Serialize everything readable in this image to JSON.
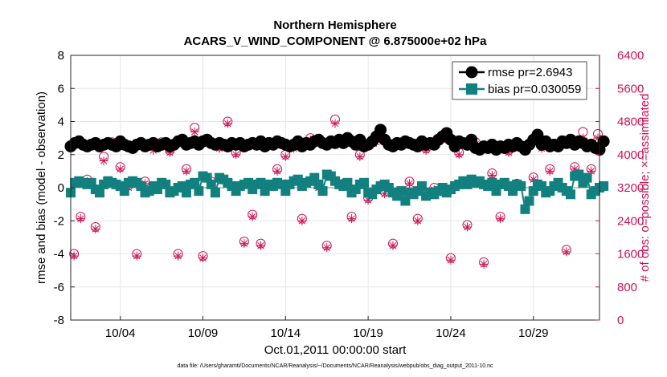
{
  "chart_data": {
    "type": "line",
    "title_line1": "Northern Hemisphere",
    "title_line2": "ACARS_V_WIND_COMPONENT @ 6.875000e+02 hPa",
    "ylabel_left": "rmse and bias (model - observation)",
    "ylabel_right": "# of obs: o=possible; ×=assimilated",
    "xlabel": "Oct.01,2011 00:00:00 start",
    "footnote": "data file: /Users/gharamti/Documents/NCAR/Reanalysis/~/Documents/NCAR/Reanalysis/webpub/obs_diag_output_2011-10.nc",
    "ylim_left": [
      -8,
      8
    ],
    "yticks_left": [
      -8,
      -6,
      -4,
      -2,
      0,
      2,
      4,
      6,
      8
    ],
    "ylim_right": [
      0,
      6400
    ],
    "yticks_right": [
      0,
      800,
      1600,
      2400,
      3200,
      4000,
      4800,
      5600,
      6400
    ],
    "xlim": [
      1.0,
      33.0
    ],
    "xticks": [
      4,
      9,
      14,
      19,
      24,
      29
    ],
    "xtick_labels": [
      "10/04",
      "10/09",
      "10/14",
      "10/19",
      "10/24",
      "10/29"
    ],
    "legend": {
      "rmse_label": "rmse pr=2.6943",
      "bias_label": "bias pr=0.030059",
      "placement": "top-right"
    },
    "colors": {
      "rmse": "#000000",
      "bias": "#138080",
      "obs": "#cc1155",
      "grid": "#e6e6e6"
    },
    "series": [
      {
        "name": "rmse",
        "axis": "left",
        "x_start": 1.0,
        "x_step": 0.25,
        "values": [
          2.5,
          2.7,
          2.8,
          2.6,
          2.5,
          2.6,
          2.7,
          2.5,
          2.6,
          2.7,
          2.6,
          2.5,
          2.8,
          2.6,
          2.5,
          2.4,
          2.6,
          2.7,
          2.5,
          2.6,
          2.7,
          2.5,
          2.6,
          2.7,
          2.5,
          2.6,
          2.8,
          2.9,
          2.6,
          2.7,
          2.8,
          2.6,
          2.8,
          2.9,
          2.7,
          2.6,
          2.7,
          2.6,
          2.5,
          2.7,
          2.6,
          2.7,
          2.5,
          2.6,
          2.7,
          2.6,
          2.8,
          2.5,
          2.7,
          2.6,
          2.8,
          2.7,
          2.6,
          2.5,
          2.6,
          2.8,
          2.5,
          2.7,
          2.6,
          2.8,
          2.9,
          2.7,
          2.6,
          2.8,
          2.7,
          2.9,
          2.7,
          3.0,
          2.8,
          2.6,
          2.9,
          2.5,
          2.6,
          2.8,
          3.1,
          3.5,
          2.9,
          2.6,
          2.5,
          2.7,
          2.6,
          2.8,
          2.7,
          2.6,
          2.5,
          2.8,
          2.6,
          2.7,
          2.6,
          2.9,
          3.1,
          3.3,
          2.9,
          2.5,
          2.8,
          2.7,
          2.6,
          2.9,
          2.4,
          2.3,
          2.5,
          2.4,
          2.6,
          2.3,
          2.5,
          2.4,
          2.6,
          2.5,
          2.7,
          2.5,
          2.3,
          2.6,
          2.9,
          3.2,
          2.6,
          2.8,
          2.5,
          2.6,
          2.5,
          2.8,
          2.7,
          2.9,
          2.6,
          2.8,
          2.7,
          2.5,
          2.6,
          2.4,
          2.3,
          2.8
        ]
      },
      {
        "name": "bias",
        "axis": "left",
        "x_start": 1.0,
        "x_step": 0.25,
        "values": [
          -0.3,
          0.3,
          0.4,
          0.3,
          0.2,
          0.3,
          -0.1,
          -0.3,
          0.2,
          0.4,
          0.3,
          0.2,
          0.1,
          -0.2,
          0.3,
          0.4,
          0.3,
          0.1,
          -0.3,
          -0.2,
          0.1,
          -0.1,
          0.3,
          0.2,
          -0.3,
          -0.2,
          0.0,
          0.1,
          -0.3,
          0.2,
          0.3,
          -0.2,
          0.7,
          0.6,
          0.2,
          -0.3,
          0.6,
          0.5,
          0.3,
          0.1,
          -0.2,
          0.1,
          0.2,
          0.3,
          -0.1,
          0.2,
          0.3,
          -0.2,
          0.2,
          0.1,
          0.3,
          0.2,
          -0.2,
          0.2,
          0.4,
          0.5,
          0.1,
          0.3,
          0.4,
          0.6,
          0.2,
          -0.2,
          0.8,
          0.7,
          0.4,
          0.2,
          0.1,
          0.3,
          -0.3,
          -0.1,
          0.2,
          0.3,
          -0.3,
          -0.4,
          -0.1,
          0.1,
          0.2,
          0.0,
          -0.3,
          -0.5,
          -0.2,
          -0.8,
          -0.3,
          -0.4,
          -0.2,
          0.1,
          -0.5,
          -0.3,
          -0.4,
          -0.2,
          0.0,
          -0.3,
          -0.1,
          0.1,
          0.2,
          0.4,
          0.2,
          0.5,
          0.3,
          0.4,
          0.2,
          0.1,
          0.3,
          -0.2,
          0.2,
          0.3,
          0.1,
          -0.2,
          0.2,
          0.1,
          -1.3,
          -0.8,
          -0.2,
          0.2,
          0.1,
          -0.3,
          -0.2,
          0.1,
          0.3,
          0.0,
          -0.2,
          -0.4,
          0.7,
          0.8,
          0.3,
          0.6,
          -0.4,
          -0.2,
          0.0,
          0.1
        ]
      },
      {
        "name": "possible obs",
        "axis": "right",
        "x": [
          1.2,
          1.6,
          2.0,
          2.5,
          3.0,
          3.5,
          4.0,
          4.5,
          5.0,
          5.5,
          6.0,
          6.5,
          7.0,
          7.5,
          8.0,
          8.5,
          9.0,
          9.5,
          10.0,
          10.5,
          11.0,
          11.5,
          12.0,
          12.5,
          13.0,
          13.5,
          14.0,
          14.5,
          15.0,
          15.5,
          16.0,
          16.5,
          17.0,
          17.5,
          18.0,
          18.5,
          19.0,
          19.5,
          20.0,
          20.5,
          21.0,
          21.5,
          22.0,
          22.5,
          23.0,
          23.5,
          24.0,
          24.5,
          25.0,
          25.5,
          26.0,
          26.5,
          27.0,
          27.5,
          28.0,
          28.5,
          29.0,
          29.5,
          30.0,
          30.5,
          31.0,
          31.5,
          32.0,
          32.5,
          32.9
        ],
        "values": [
          1600,
          2500,
          3400,
          2250,
          3950,
          4300,
          3700,
          3250,
          1600,
          3350,
          4250,
          4300,
          4100,
          1600,
          3650,
          4650,
          1550,
          3350,
          4200,
          4800,
          4050,
          1900,
          2550,
          1850,
          4300,
          3650,
          4000,
          4200,
          2450,
          4400,
          3250,
          1800,
          4850,
          3300,
          2500,
          4000,
          2950,
          4400,
          3100,
          1850,
          4300,
          3350,
          2450,
          4150,
          3200,
          4450,
          1500,
          4050,
          2300,
          4300,
          1400,
          3550,
          2500,
          4100,
          3300,
          4150,
          3450,
          4200,
          3650,
          3250,
          1700,
          3700,
          4550,
          3650,
          4500
        ]
      },
      {
        "name": "assimilated obs",
        "axis": "right",
        "x": [
          1.2,
          1.6,
          2.0,
          2.5,
          3.0,
          3.5,
          4.0,
          4.5,
          5.0,
          5.5,
          6.0,
          6.5,
          7.0,
          7.5,
          8.0,
          8.5,
          9.0,
          9.5,
          10.0,
          10.5,
          11.0,
          11.5,
          12.0,
          12.5,
          13.0,
          13.5,
          14.0,
          14.5,
          15.0,
          15.5,
          16.0,
          16.5,
          17.0,
          17.5,
          18.0,
          18.5,
          19.0,
          19.5,
          20.0,
          20.5,
          21.0,
          21.5,
          22.0,
          22.5,
          23.0,
          23.5,
          24.0,
          24.5,
          25.0,
          25.5,
          26.0,
          26.5,
          27.0,
          27.5,
          28.0,
          28.5,
          29.0,
          29.5,
          30.0,
          30.5,
          31.0,
          31.5,
          32.0,
          32.5,
          32.9
        ],
        "values": [
          1550,
          2450,
          3350,
          2200,
          3850,
          4200,
          3650,
          3200,
          1550,
          3300,
          4100,
          4250,
          4050,
          1550,
          3600,
          4550,
          1500,
          3300,
          4150,
          4750,
          4000,
          1850,
          2500,
          1800,
          4200,
          3600,
          3950,
          4150,
          2400,
          4350,
          3200,
          1750,
          4750,
          3250,
          2450,
          3950,
          2900,
          4300,
          3050,
          1800,
          4250,
          3300,
          2400,
          4100,
          3150,
          4350,
          1450,
          4000,
          2250,
          4250,
          1350,
          3500,
          2450,
          4050,
          3250,
          4100,
          3400,
          4150,
          3600,
          3200,
          1650,
          3650,
          4400,
          3600,
          4400
        ]
      }
    ]
  }
}
